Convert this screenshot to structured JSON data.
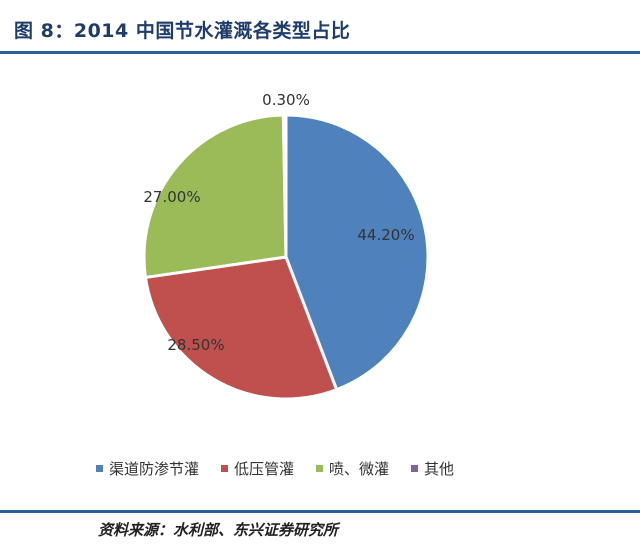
{
  "header": {
    "figure_label": "图 8：",
    "title": "2014 中国节水灌溉各类型占比"
  },
  "chart_data": {
    "type": "pie",
    "categories": [
      "渠道防渗节灌",
      "低压管灌",
      "喷、微灌",
      "其他"
    ],
    "values": [
      44.2,
      28.5,
      27.0,
      0.3
    ],
    "labels": [
      "44.20%",
      "28.50%",
      "27.00%",
      "0.30%"
    ],
    "colors": [
      "#4f81bd",
      "#c0504d",
      "#9bbb59",
      "#8064a2"
    ],
    "start_angle_deg": -90,
    "direction": "clockwise",
    "legend_position": "bottom"
  },
  "legend": {
    "items": [
      {
        "label": "渠道防渗节灌",
        "color": "#4f81bd"
      },
      {
        "label": "低压管灌",
        "color": "#c0504d"
      },
      {
        "label": "喷、微灌",
        "color": "#9bbb59"
      },
      {
        "label": "其他",
        "color": "#8064a2"
      }
    ]
  },
  "footer": {
    "source": "资料来源：水利部、东兴证券研究所"
  }
}
